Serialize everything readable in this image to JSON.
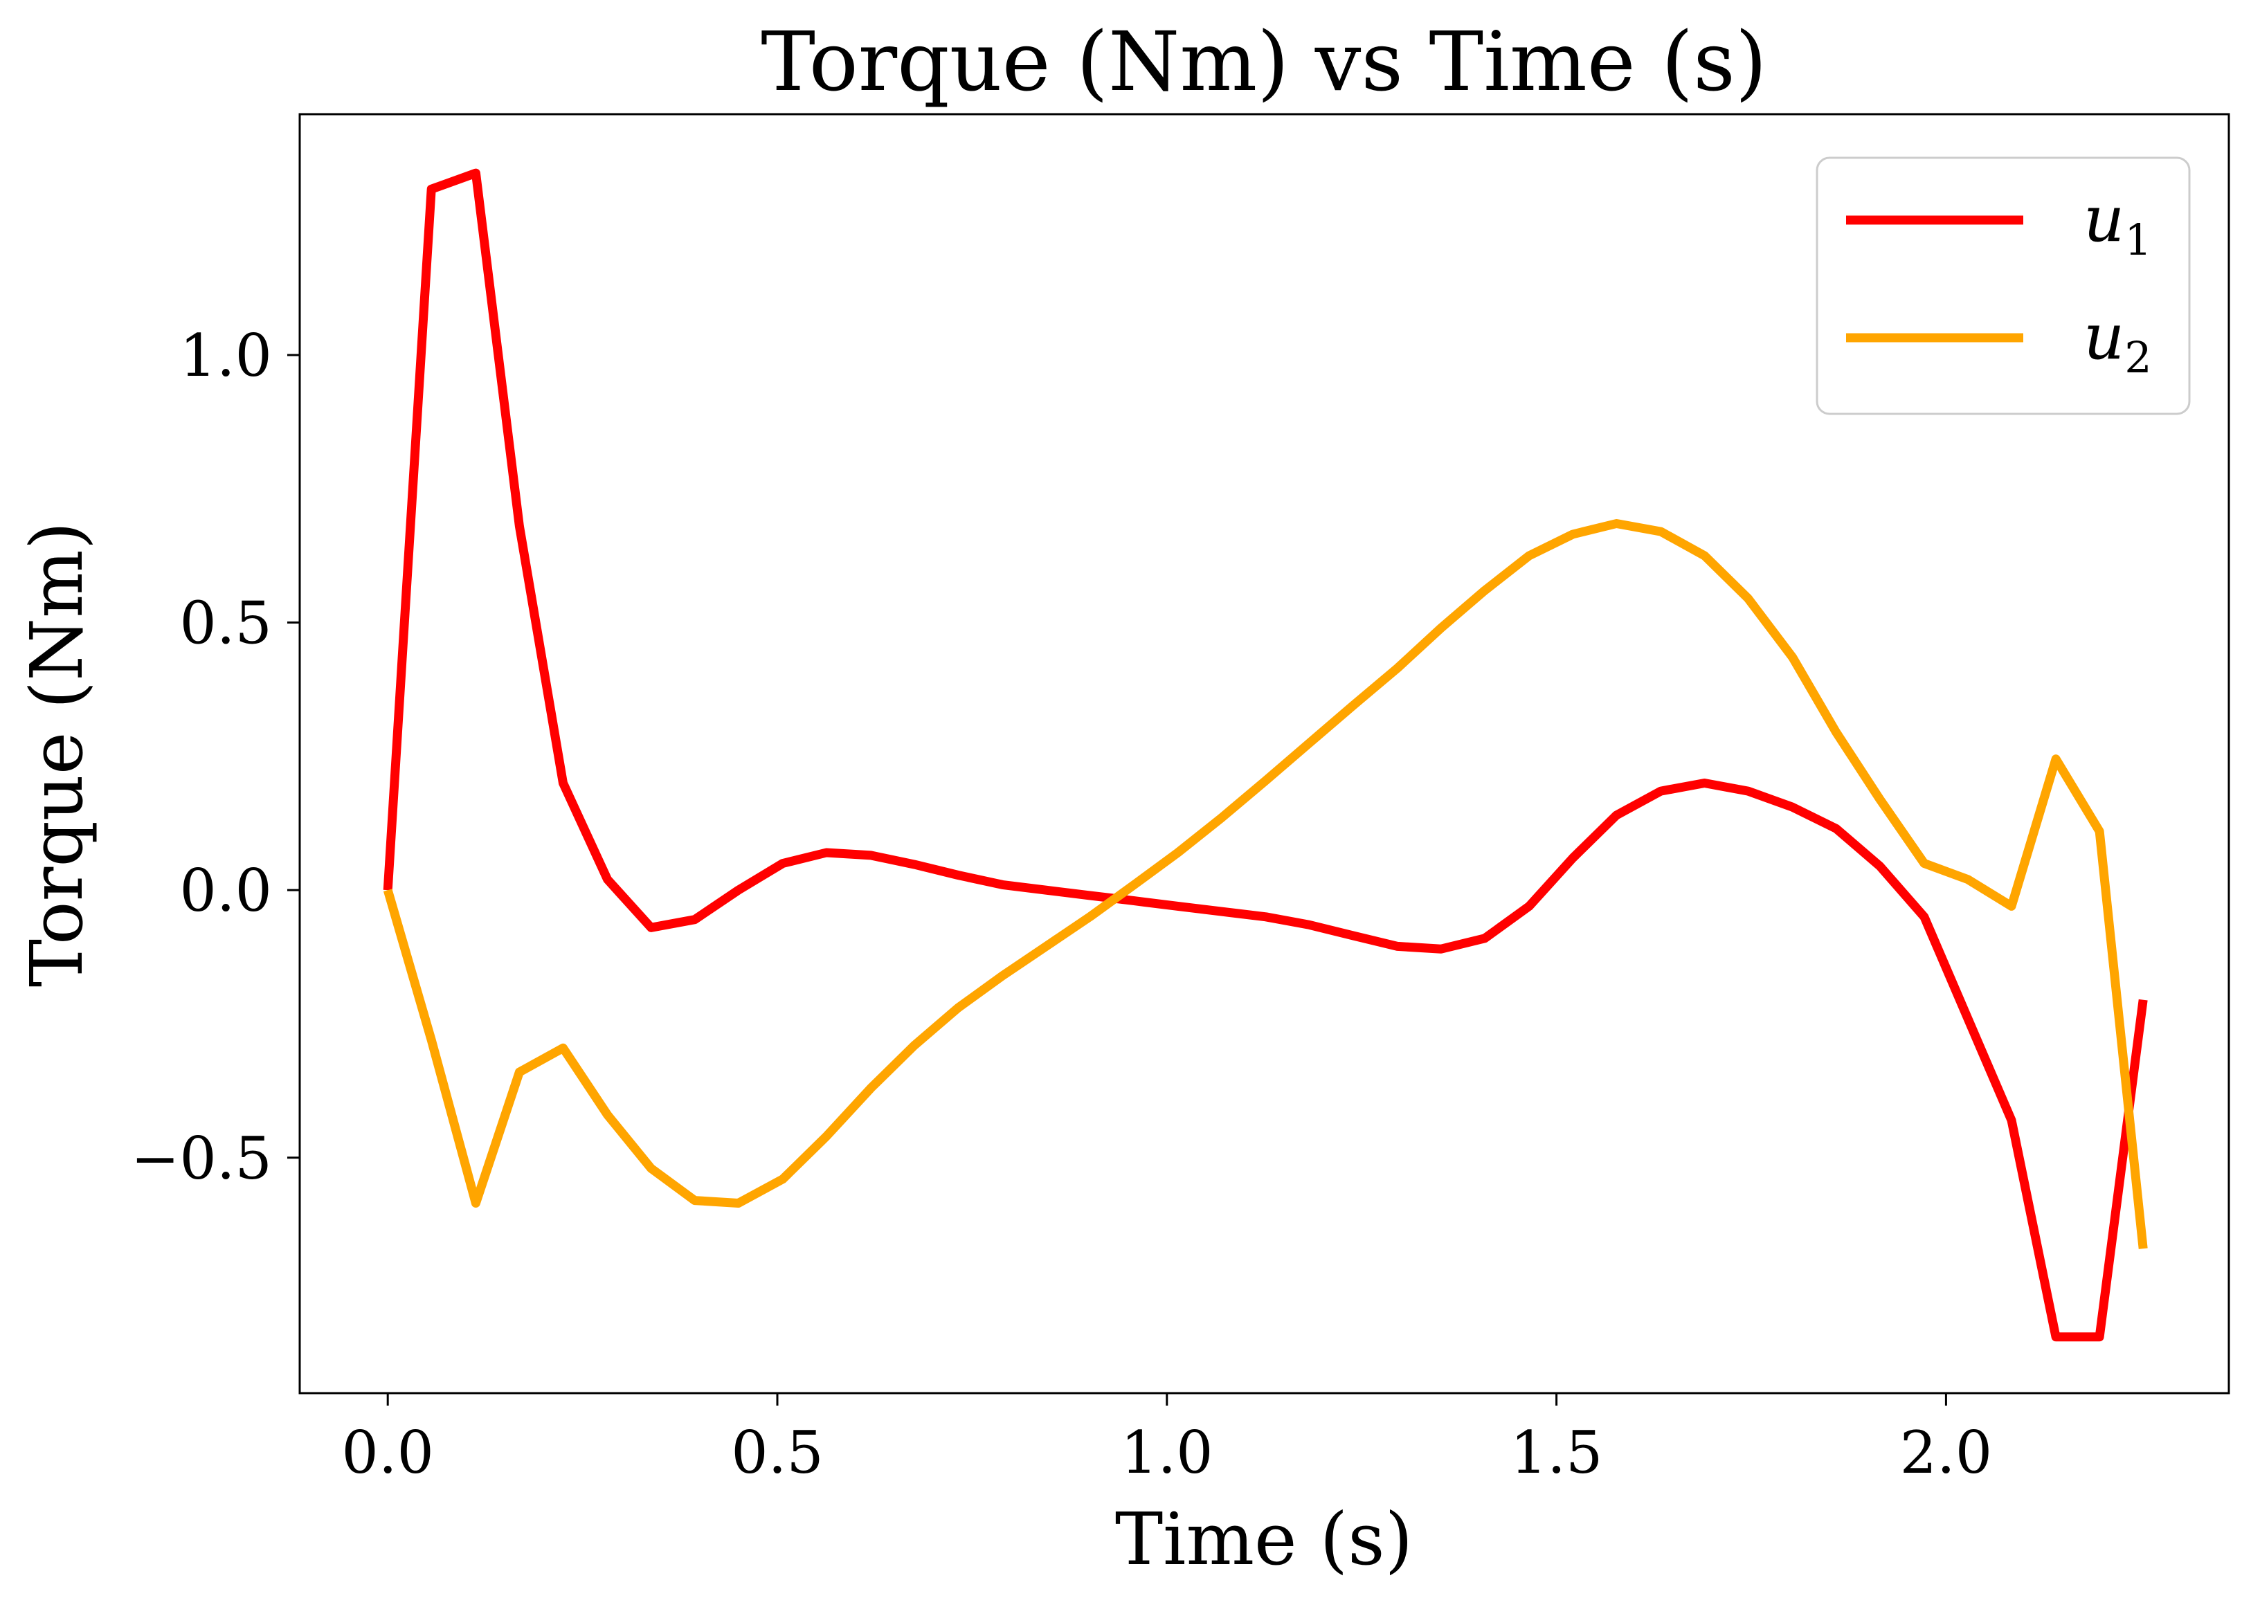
{
  "chart_data": {
    "type": "line",
    "title": "Torque (Nm) vs Time (s)",
    "xlabel": "Time (s)",
    "ylabel": "Torque (Nm)",
    "xlim": [
      -0.113,
      2.363
    ],
    "ylim": [
      -0.94,
      1.45
    ],
    "xticks": [
      0.0,
      0.5,
      1.0,
      1.5,
      2.0
    ],
    "xtick_labels": [
      "0.0",
      "0.5",
      "1.0",
      "1.5",
      "2.0"
    ],
    "yticks": [
      -0.5,
      0.0,
      0.5,
      1.0
    ],
    "ytick_labels": [
      "−0.5",
      "0.0",
      "0.5",
      "1.0"
    ],
    "grid": false,
    "legend_position": "top-right",
    "x": [
      0.0,
      0.056,
      0.113,
      0.169,
      0.225,
      0.282,
      0.338,
      0.394,
      0.45,
      0.507,
      0.563,
      0.62,
      0.676,
      0.732,
      0.789,
      0.845,
      0.901,
      0.958,
      1.014,
      1.07,
      1.127,
      1.183,
      1.239,
      1.296,
      1.352,
      1.408,
      1.465,
      1.521,
      1.577,
      1.634,
      1.69,
      1.746,
      1.803,
      1.859,
      1.915,
      1.972,
      2.028,
      2.084,
      2.141,
      2.197,
      2.253
    ],
    "series": [
      {
        "name_base": "u",
        "name_sub": "1",
        "color": "#ff0000",
        "values": [
          0.0,
          1.31,
          1.34,
          0.68,
          0.2,
          0.02,
          -0.07,
          -0.055,
          0.0,
          0.05,
          0.07,
          0.065,
          0.048,
          0.028,
          0.01,
          0.0,
          -0.01,
          -0.02,
          -0.03,
          -0.04,
          -0.05,
          -0.065,
          -0.085,
          -0.105,
          -0.11,
          -0.09,
          -0.03,
          0.06,
          0.14,
          0.185,
          0.2,
          0.185,
          0.155,
          0.115,
          0.045,
          -0.05,
          -0.24,
          -0.43,
          -0.835,
          -0.835,
          -0.205
        ]
      },
      {
        "name_base": "u",
        "name_sub": "2",
        "color": "#ffa500",
        "values": [
          0.0,
          -0.28,
          -0.585,
          -0.34,
          -0.295,
          -0.42,
          -0.52,
          -0.58,
          -0.585,
          -0.54,
          -0.46,
          -0.37,
          -0.29,
          -0.22,
          -0.16,
          -0.105,
          -0.05,
          0.01,
          0.07,
          0.135,
          0.205,
          0.275,
          0.345,
          0.415,
          0.49,
          0.56,
          0.625,
          0.665,
          0.685,
          0.67,
          0.625,
          0.545,
          0.435,
          0.295,
          0.17,
          0.05,
          0.02,
          -0.03,
          0.245,
          0.11,
          -0.67
        ]
      }
    ]
  }
}
